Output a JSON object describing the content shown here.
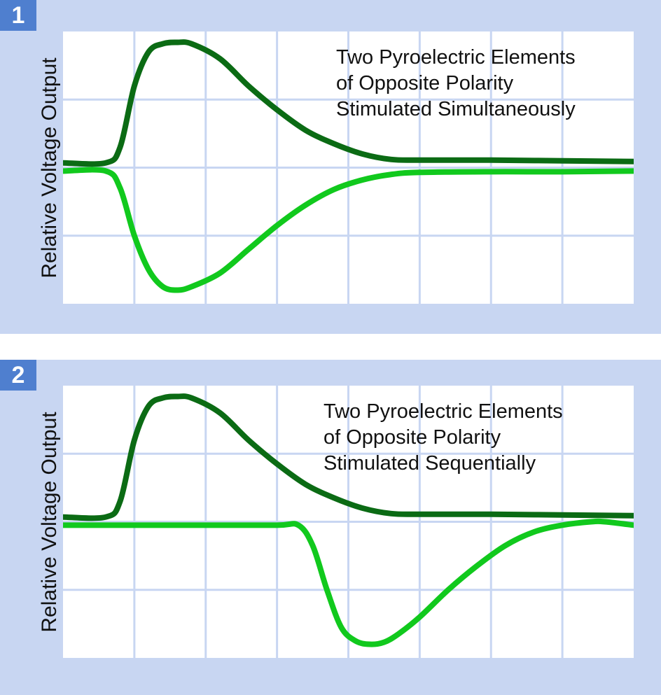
{
  "chart_data": [
    {
      "type": "line",
      "panel_number": "1",
      "title": "",
      "ylabel": "Relative Voltage Output",
      "xlabel": "",
      "annotation": [
        "Two Pyroelectric Elements",
        "of Opposite Polarity",
        "Stimulated Simultaneously"
      ],
      "grid": true,
      "x_divisions": 8,
      "y_divisions": 4,
      "xlim": [
        0,
        8
      ],
      "ylim": [
        -2,
        2
      ],
      "series": [
        {
          "color": "#0b6b14",
          "x": [
            0,
            0.6,
            0.8,
            1.0,
            1.2,
            1.4,
            1.6,
            1.8,
            2.2,
            2.6,
            3.0,
            3.4,
            3.8,
            4.2,
            4.6,
            5.0,
            6.0,
            7.0,
            8.0
          ],
          "y": [
            0.07,
            0.07,
            0.3,
            1.2,
            1.7,
            1.82,
            1.84,
            1.82,
            1.6,
            1.2,
            0.85,
            0.55,
            0.35,
            0.2,
            0.12,
            0.11,
            0.11,
            0.1,
            0.09
          ]
        },
        {
          "color": "#11c91d",
          "x": [
            0,
            0.6,
            0.8,
            1.0,
            1.2,
            1.4,
            1.6,
            1.8,
            2.2,
            2.6,
            3.0,
            3.4,
            3.8,
            4.2,
            4.6,
            5.0,
            6.0,
            7.0,
            8.0
          ],
          "y": [
            -0.05,
            -0.05,
            -0.3,
            -1.0,
            -1.5,
            -1.75,
            -1.8,
            -1.75,
            -1.55,
            -1.2,
            -0.85,
            -0.55,
            -0.32,
            -0.18,
            -0.1,
            -0.07,
            -0.06,
            -0.06,
            -0.05
          ]
        }
      ]
    },
    {
      "type": "line",
      "panel_number": "2",
      "title": "",
      "ylabel": "Relative Voltage Output",
      "xlabel": "",
      "annotation": [
        "Two Pyroelectric Elements",
        "of Opposite Polarity",
        "Stimulated Sequentially"
      ],
      "grid": true,
      "x_divisions": 8,
      "y_divisions": 4,
      "xlim": [
        0,
        8
      ],
      "ylim": [
        -2,
        2
      ],
      "series": [
        {
          "color": "#0b6b14",
          "x": [
            0,
            0.6,
            0.8,
            1.0,
            1.2,
            1.4,
            1.6,
            1.8,
            2.2,
            2.6,
            3.0,
            3.4,
            3.8,
            4.2,
            4.6,
            5.0,
            6.0,
            7.0,
            8.0
          ],
          "y": [
            0.07,
            0.07,
            0.3,
            1.2,
            1.7,
            1.82,
            1.84,
            1.82,
            1.6,
            1.2,
            0.85,
            0.55,
            0.35,
            0.2,
            0.12,
            0.11,
            0.11,
            0.1,
            0.09
          ]
        },
        {
          "color": "#11c91d",
          "x": [
            0,
            1,
            2,
            3,
            3.3,
            3.5,
            3.7,
            3.9,
            4.1,
            4.3,
            4.5,
            4.7,
            5.0,
            5.4,
            5.8,
            6.2,
            6.6,
            7.0,
            7.4,
            7.6,
            8.0
          ],
          "y": [
            -0.05,
            -0.05,
            -0.05,
            -0.05,
            -0.05,
            -0.35,
            -1.0,
            -1.55,
            -1.75,
            -1.8,
            -1.77,
            -1.65,
            -1.4,
            -1.0,
            -0.65,
            -0.35,
            -0.15,
            -0.05,
            0.0,
            0.0,
            -0.05
          ]
        }
      ]
    }
  ]
}
